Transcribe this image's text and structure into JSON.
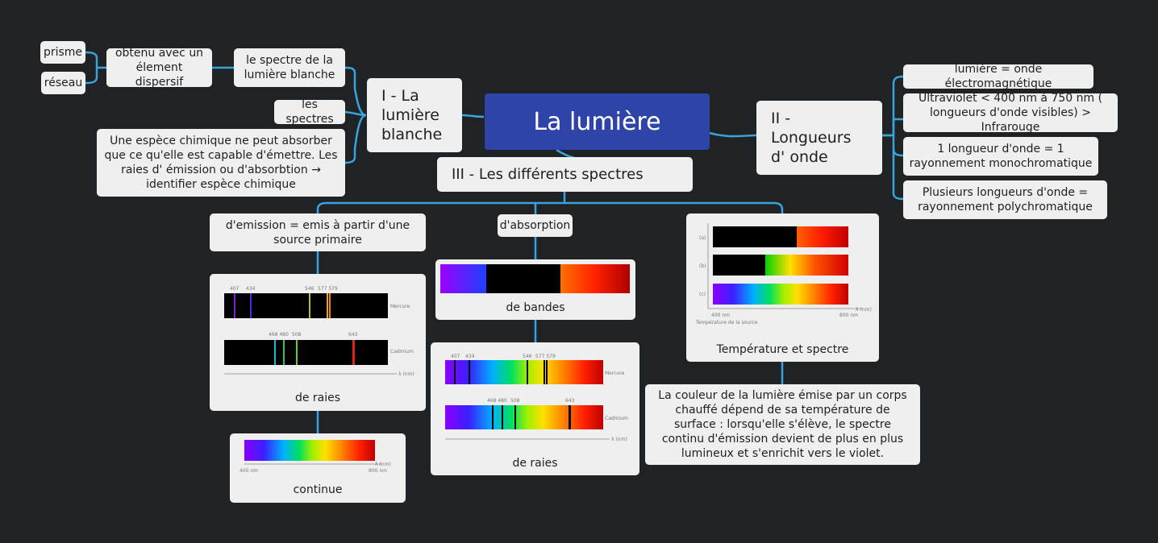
{
  "central": "La lumière",
  "branch1": {
    "title": "I - La lumière blanche",
    "white_spectrum": "le spectre de la lumière blanche",
    "obtained": "obtenu avec un élement dispersif",
    "prism": "prisme",
    "grating": "réseau",
    "spectra": "les spectres",
    "species": "Une espèce chimique ne peut absorber que ce qu'elle est capable d'émettre. Les raies d' émission ou d'absorbtion → identifier espèce chimique"
  },
  "branch2": {
    "title": "II - Longueurs d' onde",
    "items": [
      "lumière = onde électromagnétique",
      "Ultraviolet < 400 nm à 750 nm ( longueurs d'onde visibles) > Infrarouge",
      "1 longueur d'onde = 1 rayonnement monochromatique",
      "Plusieurs longueurs d'onde = rayonnement polychromatique"
    ]
  },
  "branch3": {
    "title": "III - Les différents spectres",
    "emission": "d'emission = emis à partir d'une source primaire",
    "emission_lines": "de raies",
    "continuous": "continue",
    "absorption": "d'absorption",
    "bands": "de bandes",
    "absorption_lines": "de raies",
    "temperature": "Température et spectre",
    "temperature_note": "La couleur de la lumière émise par un corps chauffé dépend de sa température de surface : lorsqu'elle s'élève, le spectre continu d'émission devient de plus en plus lumineux et s'enrichit vers le violet."
  },
  "figure_labels": {
    "mercury": "Mercure",
    "cadmium": "Cadmium",
    "lambda": "λ (nm)",
    "mercury_lines": [
      "407",
      "434",
      "546",
      "577 579"
    ],
    "cadmium_lines": [
      "468 480",
      "508",
      "643"
    ],
    "wl_start": "400 nm",
    "wl_end": "800 nm",
    "temp_a": "(a)",
    "temp_b": "(b)",
    "temp_c": "(c)",
    "temp_axis": "Température de la source"
  },
  "colors": {
    "background": "#1f2326",
    "central": "#2f44a8",
    "connector": "#3ba3dc",
    "node": "#efefef"
  }
}
